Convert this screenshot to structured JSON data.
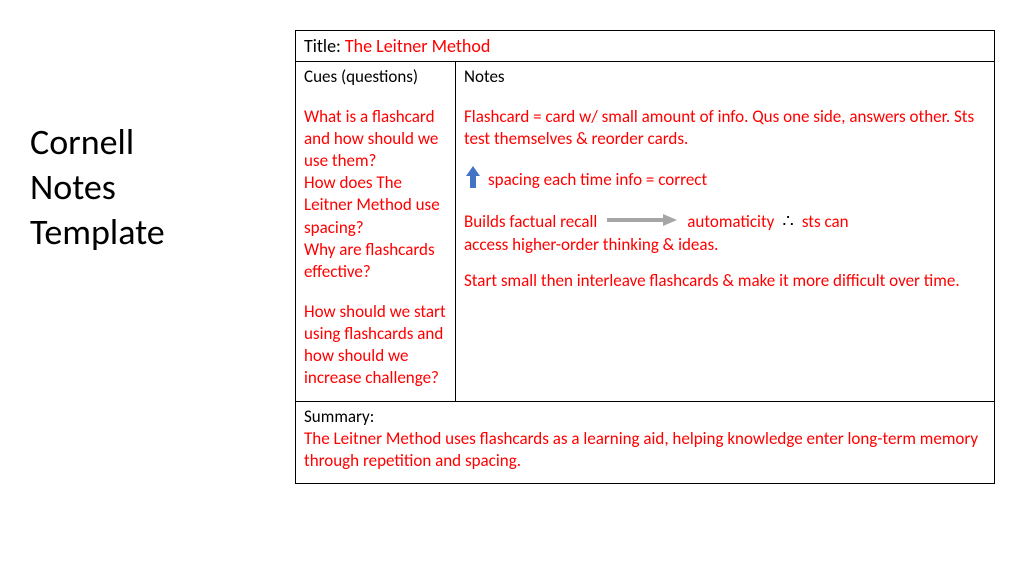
{
  "page": {
    "heading": "Cornell\nNotes\nTemplate"
  },
  "titleRow": {
    "label": "Title: ",
    "value": "The Leitner Method"
  },
  "cues": {
    "header": "Cues (questions)",
    "q1": "What is a flashcard and how should we use them?",
    "q2": "How does The Leitner Method use spacing?",
    "q3": "Why are flashcards effective?",
    "q4": "How should we start using flashcards and how should we increase challenge?"
  },
  "notes": {
    "header": "Notes",
    "p1": "Flashcard = card w/ small amount of info. Qus one side, answers other. Sts test themselves & reorder cards.",
    "spacing": "spacing each time info = correct",
    "builds_a": "Builds factual recall",
    "builds_b": "automaticity",
    "builds_c": "sts can",
    "builds_d": "access higher-order thinking & ideas.",
    "p4": "Start small then interleave flashcards & make it more difficult over time."
  },
  "summary": {
    "label": "Summary:",
    "text": "The Leitner Method uses flashcards as a learning aid, helping knowledge enter long-term memory through repetition and spacing."
  },
  "colors": {
    "text_black": "#000000",
    "text_red": "#ff0000",
    "up_arrow": "#4472c4",
    "right_arrow": "#a6a6a6",
    "background": "#ffffff",
    "border": "#000000"
  },
  "typography": {
    "heading_fontsize": 36,
    "body_fontsize": 17,
    "font_family": "Calibri"
  }
}
